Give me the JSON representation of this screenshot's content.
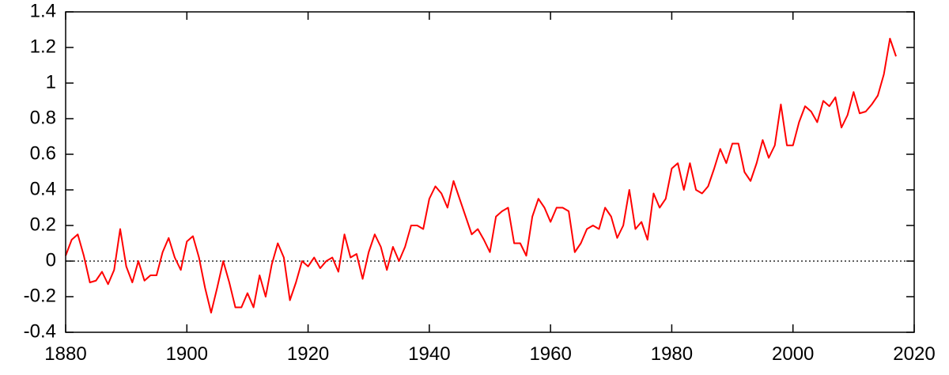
{
  "chart_data": {
    "type": "line",
    "x": [
      1880,
      1881,
      1882,
      1883,
      1884,
      1885,
      1886,
      1887,
      1888,
      1889,
      1890,
      1891,
      1892,
      1893,
      1894,
      1895,
      1896,
      1897,
      1898,
      1899,
      1900,
      1901,
      1902,
      1903,
      1904,
      1905,
      1906,
      1907,
      1908,
      1909,
      1910,
      1911,
      1912,
      1913,
      1914,
      1915,
      1916,
      1917,
      1918,
      1919,
      1920,
      1921,
      1922,
      1923,
      1924,
      1925,
      1926,
      1927,
      1928,
      1929,
      1930,
      1931,
      1932,
      1933,
      1934,
      1935,
      1936,
      1937,
      1938,
      1939,
      1940,
      1941,
      1942,
      1943,
      1944,
      1945,
      1946,
      1947,
      1948,
      1949,
      1950,
      1951,
      1952,
      1953,
      1954,
      1955,
      1956,
      1957,
      1958,
      1959,
      1960,
      1961,
      1962,
      1963,
      1964,
      1965,
      1966,
      1967,
      1968,
      1969,
      1970,
      1971,
      1972,
      1973,
      1974,
      1975,
      1976,
      1977,
      1978,
      1979,
      1980,
      1981,
      1982,
      1983,
      1984,
      1985,
      1986,
      1987,
      1988,
      1989,
      1990,
      1991,
      1992,
      1993,
      1994,
      1995,
      1996,
      1997,
      1998,
      1999,
      2000,
      2001,
      2002,
      2003,
      2004,
      2005,
      2006,
      2007,
      2008,
      2009,
      2010,
      2011,
      2012,
      2013,
      2014,
      2015,
      2016,
      2017
    ],
    "series": [
      {
        "color": "#ff0000",
        "values": [
          0.03,
          0.12,
          0.15,
          0.03,
          -0.12,
          -0.11,
          -0.06,
          -0.13,
          -0.05,
          0.18,
          -0.03,
          -0.12,
          0.0,
          -0.11,
          -0.08,
          -0.08,
          0.05,
          0.13,
          0.02,
          -0.05,
          0.11,
          0.14,
          0.02,
          -0.15,
          -0.29,
          -0.15,
          0.0,
          -0.12,
          -0.26,
          -0.26,
          -0.18,
          -0.26,
          -0.08,
          -0.2,
          -0.02,
          0.1,
          0.02,
          -0.22,
          -0.12,
          0.0,
          -0.03,
          0.02,
          -0.04,
          0.0,
          0.02,
          -0.06,
          0.15,
          0.02,
          0.04,
          -0.1,
          0.05,
          0.15,
          0.08,
          -0.05,
          0.08,
          0.0,
          0.08,
          0.2,
          0.2,
          0.18,
          0.35,
          0.42,
          0.38,
          0.3,
          0.45,
          0.35,
          0.25,
          0.15,
          0.18,
          0.12,
          0.05,
          0.25,
          0.28,
          0.3,
          0.1,
          0.1,
          0.03,
          0.25,
          0.35,
          0.3,
          0.22,
          0.3,
          0.3,
          0.28,
          0.05,
          0.1,
          0.18,
          0.2,
          0.18,
          0.3,
          0.25,
          0.13,
          0.2,
          0.4,
          0.18,
          0.22,
          0.12,
          0.38,
          0.3,
          0.35,
          0.52,
          0.55,
          0.4,
          0.55,
          0.4,
          0.38,
          0.42,
          0.52,
          0.63,
          0.55,
          0.66,
          0.66,
          0.5,
          0.45,
          0.55,
          0.68,
          0.58,
          0.65,
          0.88,
          0.65,
          0.65,
          0.78,
          0.87,
          0.84,
          0.78,
          0.9,
          0.87,
          0.92,
          0.75,
          0.82,
          0.95,
          0.83,
          0.84,
          0.88,
          0.93,
          1.05,
          1.25,
          1.15
        ]
      }
    ],
    "xlim": [
      1880,
      2020
    ],
    "xticks": [
      1880,
      1900,
      1920,
      1940,
      1960,
      1980,
      2000,
      2020
    ],
    "ylim": [
      -0.4,
      1.4
    ],
    "yticks": [
      -0.4,
      -0.2,
      0,
      0.2,
      0.4,
      0.6,
      0.8,
      1,
      1.2,
      1.4
    ],
    "reference_line": 0
  }
}
